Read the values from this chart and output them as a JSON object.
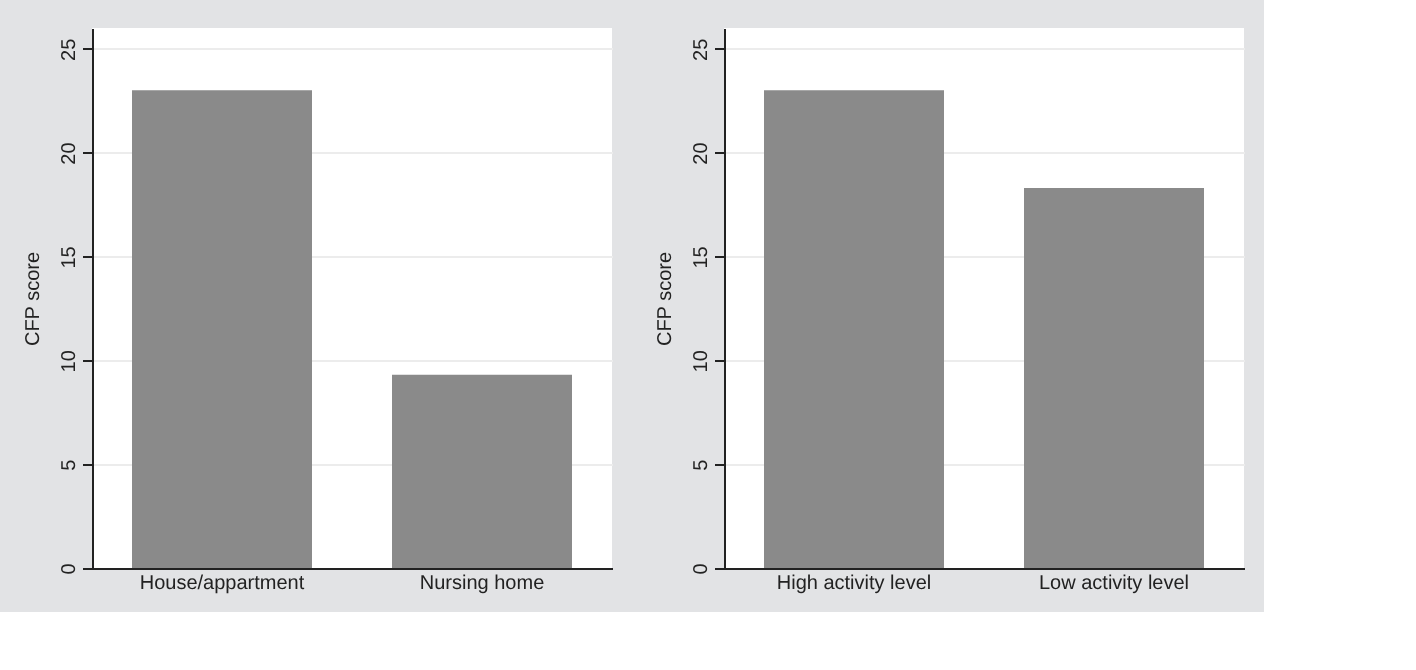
{
  "chart_data": [
    {
      "type": "bar",
      "categories": [
        "House/appartment",
        "Nursing home"
      ],
      "values": [
        23.0,
        9.3
      ],
      "color": "#8a8a8a",
      "ylabel": "CFP score",
      "ylim": [
        0,
        26
      ],
      "yticks": [
        0,
        5,
        10,
        15,
        20,
        25
      ],
      "grid": "y"
    },
    {
      "type": "bar",
      "categories": [
        "High activity level",
        "Low activity level"
      ],
      "values": [
        23.0,
        18.3
      ],
      "color": "#8a8a8a",
      "ylabel": "CFP score",
      "ylim": [
        0,
        26
      ],
      "yticks": [
        0,
        5,
        10,
        15,
        20,
        25
      ],
      "grid": "y"
    }
  ]
}
